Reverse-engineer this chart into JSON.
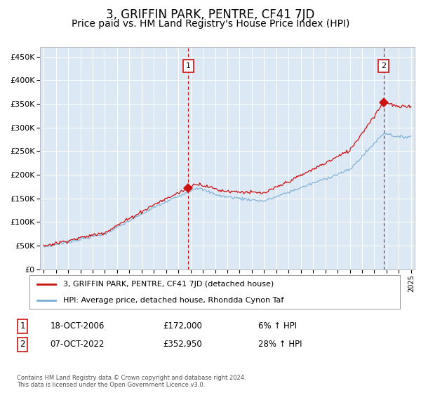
{
  "title": "3, GRIFFIN PARK, PENTRE, CF41 7JD",
  "subtitle": "Price paid vs. HM Land Registry's House Price Index (HPI)",
  "title_fontsize": 12,
  "subtitle_fontsize": 10,
  "background_color": "#dde8f5",
  "hpi_color": "#7aaed4",
  "price_color": "#cc1111",
  "dashed_vline_color": "#cc1111",
  "ylim": [
    0,
    470000
  ],
  "yticks": [
    0,
    50000,
    100000,
    150000,
    200000,
    250000,
    300000,
    350000,
    400000,
    450000
  ],
  "year_start": 1995,
  "year_end": 2025,
  "purchase1_year": 2006.8,
  "purchase1_price": 172000,
  "purchase2_year": 2022.77,
  "purchase2_price": 352950,
  "legend_entries": [
    "3, GRIFFIN PARK, PENTRE, CF41 7JD (detached house)",
    "HPI: Average price, detached house, Rhondda Cynon Taf"
  ],
  "annotation1_label": "1",
  "annotation1_date": "18-OCT-2006",
  "annotation1_price": "£172,000",
  "annotation1_pct": "6% ↑ HPI",
  "annotation2_label": "2",
  "annotation2_date": "07-OCT-2022",
  "annotation2_price": "£352,950",
  "annotation2_pct": "28% ↑ HPI",
  "footer": "Contains HM Land Registry data © Crown copyright and database right 2024.\nThis data is licensed under the Open Government Licence v3.0."
}
